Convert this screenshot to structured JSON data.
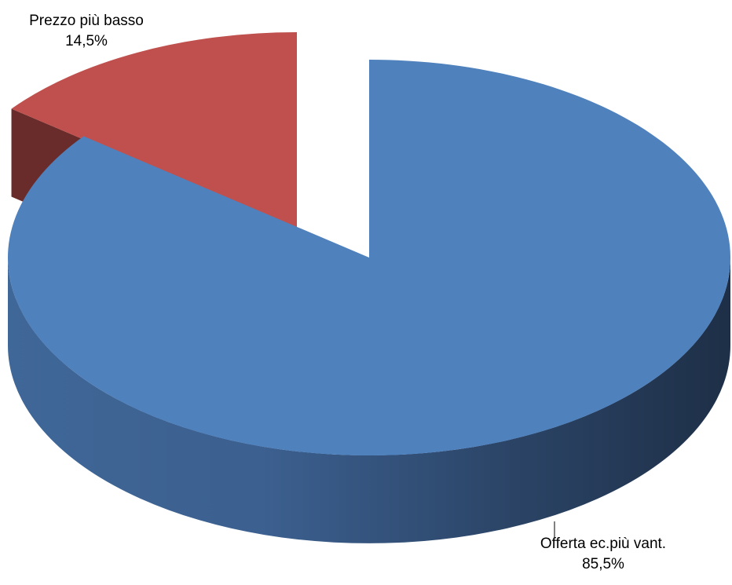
{
  "chart_data": {
    "type": "pie",
    "style": "3d-exploded",
    "title": "",
    "slices": [
      {
        "label": "Offerta ec.più vant.",
        "value": 85.5,
        "display": "85,5%",
        "color": "#4F81BD"
      },
      {
        "label": "Prezzo più basso",
        "value": 14.5,
        "display": "14,5%",
        "color": "#C0504D"
      }
    ],
    "legend": "none",
    "data_labels": "outside"
  }
}
